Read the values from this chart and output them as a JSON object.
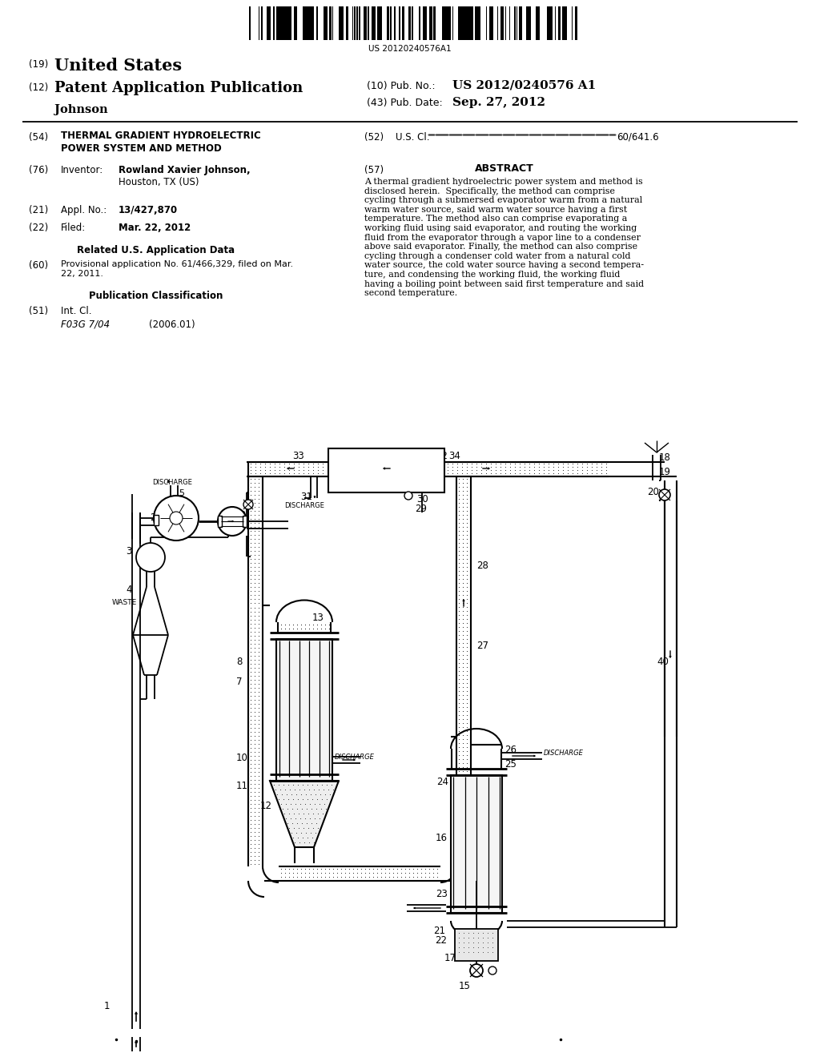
{
  "bg": "#ffffff",
  "barcode_num": "US 20120240576A1",
  "pub_no_label": "(10) Pub. No.:",
  "pub_no": "US 2012/0240576 A1",
  "pub_date_label": "(43) Pub. Date:",
  "pub_date": "Sep. 27, 2012",
  "n19": "(19)",
  "united_states": "United States",
  "n12": "(12)",
  "patent_pub": "Patent Application Publication",
  "johnson": "Johnson",
  "n54": "(54)",
  "title_line1": "THERMAL GRADIENT HYDROELECTRIC",
  "title_line2": "POWER SYSTEM AND METHOD",
  "n52": "(52)",
  "us_cl_label": "U.S. Cl. ",
  "us_cl_val": "60/641.6",
  "n76": "(76)",
  "inventor_label": "Inventor:",
  "inventor_name": "Rowland Xavier Johnson,",
  "inventor_loc": "Houston, TX (US)",
  "n57": "(57)",
  "abstract_title": "ABSTRACT",
  "abstract": "A thermal gradient hydroelectric power system and method is\ndisclosed herein.  Specifically, the method can comprise\ncycling through a submersed evaporator warm from a natural\nwarm water source, said warm water source having a first\ntemperature. The method also can comprise evaporating a\nworking fluid using said evaporator, and routing the working\nfluid from the evaporator through a vapor line to a condenser\nabove said evaporator. Finally, the method can also comprise\ncycling through a condenser cold water from a natural cold\nwater source, the cold water source having a second tempera-\nture, and condensing the working fluid, the working fluid\nhaving a boiling point between said first temperature and said\nsecond temperature.",
  "n21": "(21)",
  "appl_label": "Appl. No.:",
  "appl_no": "13/427,870",
  "n22": "(22)",
  "filed_label": "Filed:",
  "filed_val": "Mar. 22, 2012",
  "related_header": "Related U.S. Application Data",
  "n60": "(60)",
  "prov_app": "Provisional application No. 61/466,329, filed on Mar.\n22, 2011.",
  "pub_class_header": "Publication Classification",
  "n51": "(51)",
  "int_cl_label": "Int. Cl.",
  "int_cl_code": "F03G 7/04",
  "int_cl_year": "(2006.01)"
}
